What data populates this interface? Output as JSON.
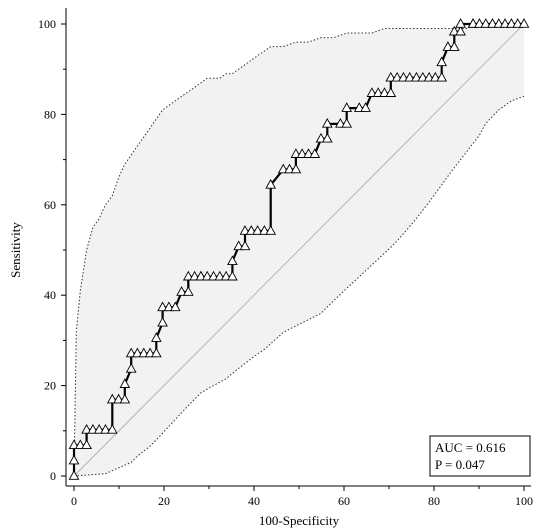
{
  "chart_data": {
    "type": "line",
    "title": "",
    "xlabel": "100-Specificity",
    "ylabel": "Sensitivity",
    "xlim": [
      0,
      100
    ],
    "ylim": [
      0,
      100
    ],
    "x_ticks": [
      0,
      20,
      40,
      60,
      80,
      100
    ],
    "y_ticks": [
      0,
      20,
      40,
      60,
      80,
      100
    ],
    "grid": false,
    "reference_line": {
      "from": [
        0,
        0
      ],
      "to": [
        100,
        100
      ]
    },
    "colors": {
      "roc": "#000000",
      "band_fill": "#f2f2f2",
      "band_edge": "#333333",
      "reference": "#b5b5b5"
    },
    "stats": {
      "auc": "AUC = 0.616",
      "p": "P = 0.047"
    },
    "series": [
      {
        "marker": "triangle",
        "x": [
          0,
          0,
          0,
          1.4,
          2.8,
          2.8,
          4.2,
          5.6,
          7,
          8.5,
          8.5,
          9.9,
          11.3,
          11.3,
          12.7,
          12.7,
          14.1,
          15.5,
          16.9,
          18.3,
          18.3,
          19.7,
          19.7,
          21.1,
          22.5,
          23.9,
          25.4,
          25.4,
          26.8,
          28.2,
          28.2,
          29.6,
          31,
          32.4,
          33.8,
          35.2,
          35.2,
          36.6,
          38,
          38,
          39.4,
          40.8,
          42.3,
          43.7,
          43.7,
          46.5,
          47.9,
          49.3,
          49.3,
          50.7,
          52.1,
          53.5,
          54.9,
          56.3,
          56.3,
          59.2,
          60.6,
          60.6,
          63.4,
          64.8,
          66.2,
          67.6,
          69,
          70.4,
          70.4,
          71.8,
          73.2,
          74.6,
          76.1,
          77.5,
          78.9,
          80.3,
          81.7,
          81.7,
          83.1,
          84.5,
          84.5,
          85.9,
          85.9,
          88.7,
          88.7,
          90.1,
          91.5,
          93,
          94.4,
          95.8,
          97.2,
          98.6,
          100
        ],
        "y": [
          0,
          3.4,
          6.8,
          6.8,
          6.8,
          10.2,
          10.2,
          10.2,
          10.2,
          10.2,
          16.9,
          16.9,
          16.9,
          20.3,
          23.7,
          27.1,
          27.1,
          27.1,
          27.1,
          27.1,
          30.5,
          33.9,
          37.3,
          37.3,
          37.3,
          40.7,
          40.7,
          44.1,
          44.1,
          44.1,
          44.1,
          44.1,
          44.1,
          44.1,
          44.1,
          44.1,
          47.5,
          50.8,
          50.8,
          54.2,
          54.2,
          54.2,
          54.2,
          54.2,
          64.4,
          67.8,
          67.8,
          67.8,
          71.2,
          71.2,
          71.2,
          71.2,
          74.6,
          74.6,
          77.9,
          77.9,
          77.9,
          81.4,
          81.4,
          81.4,
          84.7,
          84.7,
          84.7,
          84.7,
          88.1,
          88.1,
          88.1,
          88.1,
          88.1,
          88.1,
          88.1,
          88.1,
          88.1,
          91.5,
          94.9,
          94.9,
          98.3,
          98.3,
          100,
          100,
          100,
          100,
          100,
          100,
          100,
          100,
          100,
          100,
          100
        ]
      },
      {
        "name": "upper confidence bound",
        "x": [
          0,
          0.5,
          1.4,
          2.8,
          4.2,
          5.6,
          7,
          8.5,
          9.9,
          11.3,
          12.7,
          14.1,
          15.5,
          16.9,
          18.3,
          19.7,
          21.1,
          22.5,
          23.9,
          25.4,
          26.8,
          28.2,
          29.6,
          31,
          32.4,
          33.8,
          35.2,
          36.6,
          38,
          39.4,
          40.8,
          42.3,
          43.7,
          46.5,
          49.3,
          52.1,
          54.9,
          57.7,
          60.6,
          63.4,
          66.2,
          69,
          71.8,
          74.6,
          77.5,
          80.3,
          83.1,
          84.5,
          85.9,
          87.3,
          88.7,
          90.1,
          91.5,
          94.4,
          97.2,
          100
        ],
        "y": [
          0,
          32,
          41,
          50,
          55,
          57,
          60,
          62,
          66,
          69,
          71,
          73,
          75,
          77,
          79,
          81,
          82,
          83,
          84,
          85,
          86,
          87,
          88,
          88,
          88,
          89,
          89,
          90,
          91,
          92,
          93,
          94,
          95,
          95,
          96,
          96,
          97,
          97,
          98,
          98,
          98,
          99,
          99,
          99,
          99,
          99,
          99,
          99,
          99,
          99,
          100,
          100,
          100,
          100,
          100,
          100
        ]
      },
      {
        "name": "lower confidence bound",
        "x": [
          0,
          7,
          8.5,
          9.9,
          11.3,
          12.7,
          14.1,
          15.5,
          16.9,
          18.3,
          19.7,
          21.1,
          22.5,
          23.9,
          25.4,
          26.8,
          28.2,
          31,
          33.8,
          35.2,
          36.6,
          38,
          39.4,
          40.8,
          42.3,
          43.7,
          45.1,
          46.5,
          49.3,
          52.1,
          54.9,
          56.3,
          57.7,
          59.2,
          60.6,
          62,
          63.4,
          64.8,
          66.2,
          67.6,
          69,
          70.4,
          71.8,
          73.2,
          74.6,
          76.1,
          77.5,
          78.9,
          80.3,
          81.7,
          83.1,
          84.5,
          85.9,
          87.3,
          88.7,
          90.1,
          91.5,
          94.4,
          97.2,
          100
        ],
        "y": [
          0,
          0.5,
          1.2,
          1.8,
          2.4,
          3,
          4.4,
          5.5,
          6.6,
          8,
          9.5,
          11,
          12.5,
          14,
          15.6,
          17,
          18.4,
          20,
          21.5,
          22.7,
          23.8,
          24.9,
          26,
          27,
          28,
          29.3,
          30.5,
          31.8,
          33.2,
          34.6,
          36,
          37.4,
          38.8,
          40.2,
          41.5,
          42.8,
          44.1,
          45.4,
          46.7,
          48,
          49.3,
          50.6,
          52,
          53.6,
          55.2,
          57,
          58.8,
          60.6,
          62.5,
          64.4,
          66.3,
          68.2,
          70,
          71.8,
          73.6,
          75.4,
          78,
          81,
          83,
          84
        ]
      }
    ]
  }
}
